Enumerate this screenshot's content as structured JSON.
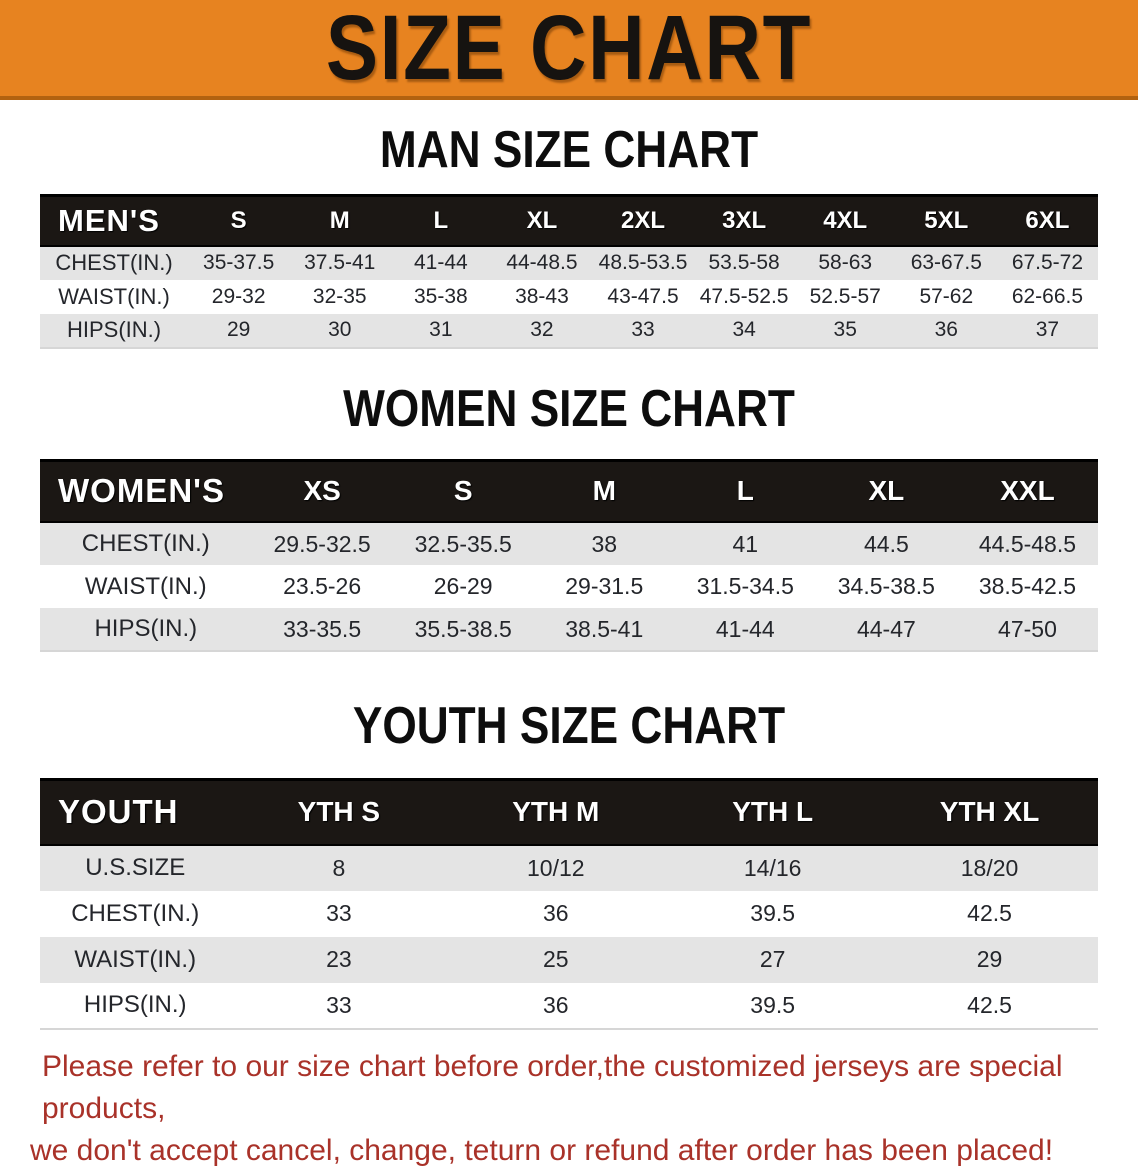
{
  "banner": {
    "title": "SIZE CHART",
    "bg_color": "#e78320"
  },
  "sections": [
    {
      "heading": "MAN SIZE CHART",
      "table": {
        "header_label": "MEN'S",
        "columns": [
          "S",
          "M",
          "L",
          "XL",
          "2XL",
          "3XL",
          "4XL",
          "5XL",
          "6XL"
        ],
        "rows": [
          {
            "label": "CHEST(IN.)",
            "values": [
              "35-37.5",
              "37.5-41",
              "41-44",
              "44-48.5",
              "48.5-53.5",
              "53.5-58",
              "58-63",
              "63-67.5",
              "67.5-72"
            ]
          },
          {
            "label": "WAIST(IN.)",
            "values": [
              "29-32",
              "32-35",
              "35-38",
              "38-43",
              "43-47.5",
              "47.5-52.5",
              "52.5-57",
              "57-62",
              "62-66.5"
            ]
          },
          {
            "label": "HIPS(IN.)",
            "values": [
              "29",
              "30",
              "31",
              "32",
              "33",
              "34",
              "35",
              "36",
              "37"
            ]
          }
        ]
      }
    },
    {
      "heading": "WOMEN SIZE CHART",
      "table": {
        "header_label": "WOMEN'S",
        "columns": [
          "XS",
          "S",
          "M",
          "L",
          "XL",
          "XXL"
        ],
        "rows": [
          {
            "label": "CHEST(IN.)",
            "values": [
              "29.5-32.5",
              "32.5-35.5",
              "38",
              "41",
              "44.5",
              "44.5-48.5"
            ]
          },
          {
            "label": "WAIST(IN.)",
            "values": [
              "23.5-26",
              "26-29",
              "29-31.5",
              "31.5-34.5",
              "34.5-38.5",
              "38.5-42.5"
            ]
          },
          {
            "label": "HIPS(IN.)",
            "values": [
              "33-35.5",
              "35.5-38.5",
              "38.5-41",
              "41-44",
              "44-47",
              "47-50"
            ]
          }
        ]
      }
    },
    {
      "heading": "YOUTH SIZE CHART",
      "table": {
        "header_label": "YOUTH",
        "columns": [
          "YTH S",
          "YTH M",
          "YTH L",
          "YTH XL"
        ],
        "rows": [
          {
            "label": "U.S.SIZE",
            "values": [
              "8",
              "10/12",
              "14/16",
              "18/20"
            ]
          },
          {
            "label": "CHEST(IN.)",
            "values": [
              "33",
              "36",
              "39.5",
              "42.5"
            ]
          },
          {
            "label": "WAIST(IN.)",
            "values": [
              "23",
              "25",
              "27",
              "29"
            ]
          },
          {
            "label": "HIPS(IN.)",
            "values": [
              "33",
              "36",
              "39.5",
              "42.5"
            ]
          }
        ]
      }
    }
  ],
  "footer": {
    "lines": [
      "Please refer to our size chart before order,the customized jerseys are special products,",
      "we don't accept cancel, change, teturn or refund after order has been placed!"
    ],
    "color": "#a93229"
  },
  "colors": {
    "banner_orange": "#e78320",
    "header_black": "#1b1714",
    "row_gray": "#e4e4e4",
    "footer_red": "#a93229"
  }
}
